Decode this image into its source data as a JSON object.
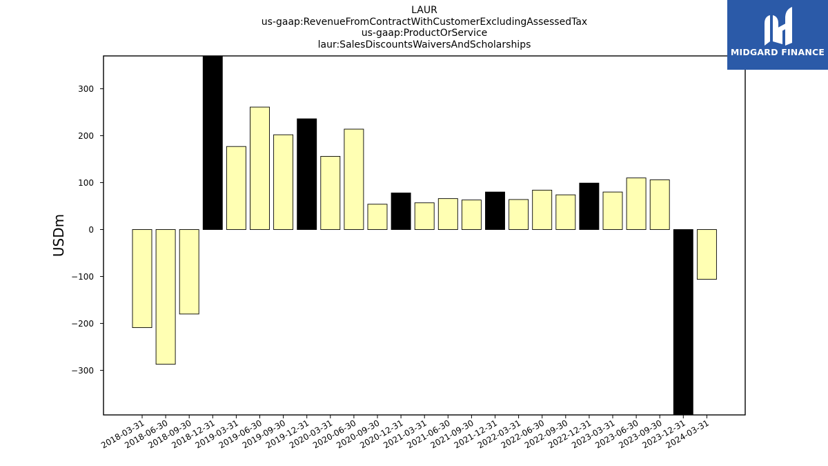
{
  "chart_data": {
    "type": "bar",
    "title_lines": [
      "LAUR",
      "us-gaap:RevenueFromContractWithCustomerExcludingAssessedTax",
      "us-gaap:ProductOrService",
      "laur:SalesDiscountsWaiversAndScholarships"
    ],
    "ylabel": "USDm",
    "xlabel": "",
    "ylim": [
      -395,
      370
    ],
    "yticks": [
      -300,
      -200,
      -100,
      0,
      100,
      200,
      300
    ],
    "yticklabels": [
      "−300",
      "−200",
      "−100",
      "0",
      "100",
      "200",
      "300"
    ],
    "categories": [
      "2018-03-31",
      "2018-06-30",
      "2018-09-30",
      "2018-12-31",
      "2019-03-31",
      "2019-06-30",
      "2019-09-30",
      "2019-12-31",
      "2020-03-31",
      "2020-06-30",
      "2020-09-30",
      "2020-12-31",
      "2021-03-31",
      "2021-06-30",
      "2021-09-30",
      "2021-12-31",
      "2022-03-31",
      "2022-06-30",
      "2022-09-30",
      "2022-12-31",
      "2023-03-31",
      "2023-06-30",
      "2023-09-30",
      "2023-12-31",
      "2024-03-31"
    ],
    "values": [
      -209,
      -287,
      -180,
      370,
      177,
      261,
      202,
      236,
      156,
      214,
      54,
      78,
      57,
      66,
      63,
      80,
      64,
      84,
      74,
      99,
      80,
      110,
      106,
      -395,
      -106
    ],
    "highlight": [
      false,
      false,
      false,
      true,
      false,
      false,
      false,
      true,
      false,
      false,
      false,
      true,
      false,
      false,
      false,
      true,
      false,
      false,
      false,
      true,
      false,
      false,
      false,
      true,
      false
    ],
    "colors": {
      "normal": "#ffffb3",
      "highlight": "#000000",
      "edge": "#000000"
    },
    "grid": false
  },
  "logo": {
    "text": "MIDGARD FINANCE",
    "color": "#2b5aa8",
    "icon": "midgard-logo-icon"
  }
}
